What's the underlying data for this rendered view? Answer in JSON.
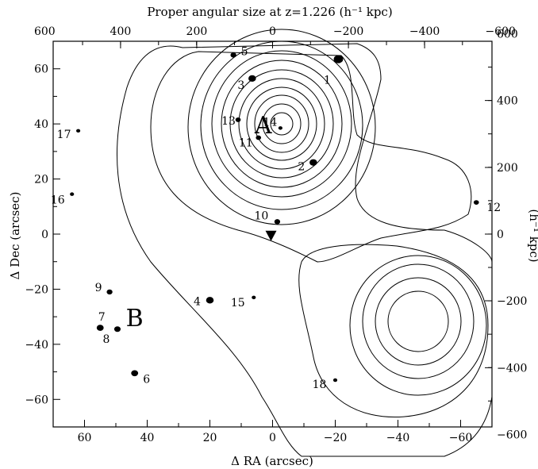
{
  "chart_data": {
    "type": "scatter",
    "title": "Proper angular size at z=1.226 (h⁻¹ kpc)",
    "xlabel": "Δ RA (arcsec)",
    "ylabel": "Δ Dec (arcsec)",
    "y2label": "(h⁻¹ kpc)",
    "xlim": [
      70,
      -70
    ],
    "ylim": [
      -70,
      70
    ],
    "x_ticks": [
      -60,
      -40,
      -20,
      0,
      20,
      40,
      60
    ],
    "x_tick_labels": [
      "−60",
      "−40",
      "−20",
      "0",
      "20",
      "40",
      "60"
    ],
    "y_ticks": [
      -60,
      -40,
      -20,
      0,
      20,
      40,
      60
    ],
    "y_tick_labels": [
      "−60",
      "−40",
      "−20",
      "0",
      "20",
      "40",
      "60"
    ],
    "top_ticks_arcsec": [
      -72.7,
      -48.5,
      -24.2,
      0,
      24.2,
      48.5,
      72.7
    ],
    "top_tick_labels": [
      "−600",
      "−400",
      "−200",
      "0",
      "200",
      "400",
      "600"
    ],
    "right_ticks_arcsec": [
      -72.7,
      -48.5,
      -24.2,
      0,
      24.2,
      48.5,
      72.7
    ],
    "right_tick_labels": [
      "−600",
      "−400",
      "−200",
      "0",
      "200",
      "400",
      "600"
    ],
    "galaxies": [
      {
        "id": "1",
        "x": -21.0,
        "y": 63.5,
        "size": 1.6
      },
      {
        "id": "2",
        "x": -13.0,
        "y": 26.0,
        "size": 1.3
      },
      {
        "id": "3",
        "x": 6.5,
        "y": 56.5,
        "size": 1.3
      },
      {
        "id": "4",
        "x": 20.0,
        "y": -24.0,
        "size": 1.3
      },
      {
        "id": "5",
        "x": 12.5,
        "y": 65.0,
        "size": 1.0
      },
      {
        "id": "6",
        "x": 44.0,
        "y": -50.5,
        "size": 1.2
      },
      {
        "id": "7",
        "x": 55.0,
        "y": -34.0,
        "size": 1.2
      },
      {
        "id": "8",
        "x": 49.5,
        "y": -34.5,
        "size": 1.1
      },
      {
        "id": "9",
        "x": 52.0,
        "y": -21.0,
        "size": 1.0
      },
      {
        "id": "10",
        "x": -1.5,
        "y": 4.5,
        "size": 1.0
      },
      {
        "id": "11",
        "x": 4.5,
        "y": 35.0,
        "size": 0.9
      },
      {
        "id": "12",
        "x": -65.0,
        "y": 11.5,
        "size": 0.9
      },
      {
        "id": "13",
        "x": 11.0,
        "y": 41.5,
        "size": 0.9
      },
      {
        "id": "14",
        "x": -2.5,
        "y": 38.5,
        "size": 0.7
      },
      {
        "id": "15",
        "x": 6.0,
        "y": -23.0,
        "size": 0.7
      },
      {
        "id": "16",
        "x": 64.0,
        "y": 14.5,
        "size": 0.7
      },
      {
        "id": "17",
        "x": 62.0,
        "y": 37.5,
        "size": 0.7
      },
      {
        "id": "18",
        "x": -20.0,
        "y": -53.0,
        "size": 0.7
      }
    ],
    "clumps": [
      {
        "name": "A",
        "x": 3.0,
        "y": 40.0
      },
      {
        "name": "B",
        "x": 44.0,
        "y": -30.0
      }
    ],
    "quasar_marker": {
      "x": 0.5,
      "y": -0.5,
      "symbol": "inverted-triangle"
    }
  }
}
